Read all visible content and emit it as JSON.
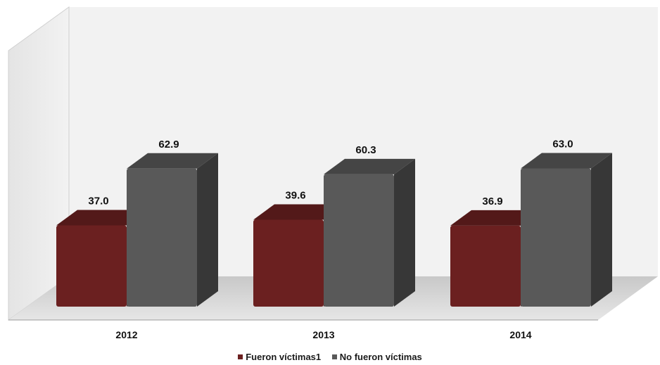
{
  "chart_data": {
    "type": "bar",
    "categories": [
      "2012",
      "2013",
      "2014"
    ],
    "series": [
      {
        "name": "Fueron víctimas1",
        "values": [
          37.0,
          39.6,
          36.9
        ],
        "labels": [
          "37.0",
          "39.6",
          "36.9"
        ],
        "color": "#6b2020"
      },
      {
        "name": "No fueron víctimas",
        "values": [
          62.9,
          60.3,
          63.0
        ],
        "labels": [
          "62.9",
          "60.3",
          "63.0"
        ],
        "color": "#595959"
      }
    ],
    "title": "",
    "xlabel": "",
    "ylabel": "",
    "ylim": [
      0,
      100
    ],
    "grid": false,
    "three_d": true,
    "legend": "bottom"
  }
}
